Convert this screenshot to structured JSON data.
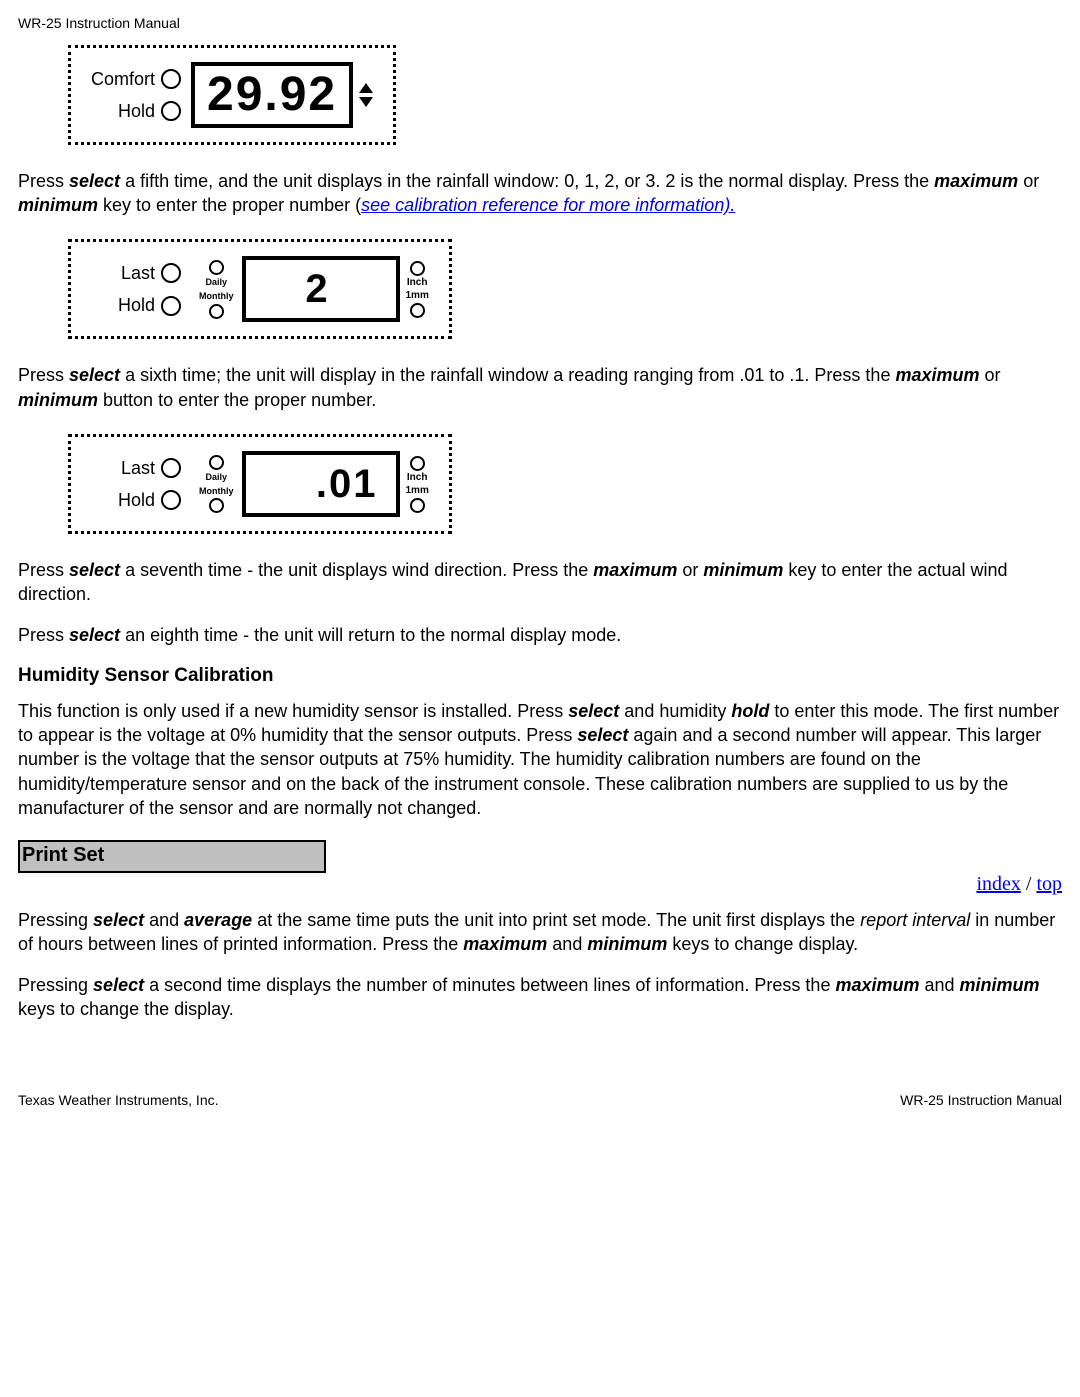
{
  "header": "WR-25 Instruction Manual",
  "panel1": {
    "label_top": "Comfort",
    "label_bottom": "Hold",
    "value": "29.92"
  },
  "para1": {
    "t1": "Press ",
    "k1": "select",
    "t2": " a fifth time, and the unit displays in the rainfall window: 0, 1, 2, or 3. 2 is the normal display. Press the ",
    "k2": "maximum",
    "t3": " or ",
    "k3": "minimum",
    "t4": " key to enter the proper number (",
    "link": "see calibration reference for more information).",
    "t5": ""
  },
  "panel2": {
    "label_top": "Last",
    "label_bottom": "Hold",
    "mid_top": "Daily",
    "mid_bot": "Monthly",
    "value": "2",
    "right_top": "Inch",
    "right_mid": "1mm"
  },
  "para2": {
    "t1": "Press ",
    "k1": "select",
    "t2": " a sixth time; the unit will display in the rainfall window a reading ranging from .01 to .1. Press the ",
    "k2": "maximum",
    "t3": " or ",
    "k3": "minimum",
    "t4": " button to enter the proper number."
  },
  "panel3": {
    "label_top": "Last",
    "label_bottom": "Hold",
    "mid_top": "Daily",
    "mid_bot": "Monthly",
    "value": ".01",
    "right_top": "Inch",
    "right_mid": "1mm"
  },
  "para3": {
    "t1": "Press ",
    "k1": "select",
    "t2": " a seventh time - the unit displays wind direction. Press the ",
    "k2": "maximum",
    "t3": " or ",
    "k3": "minimum",
    "t4": " key to enter the actual wind direction."
  },
  "para4": {
    "t1": "Press ",
    "k1": "select",
    "t2": " an eighth time - the unit will return to the normal display mode."
  },
  "h_humidity": "Humidity Sensor Calibration",
  "para5": {
    "t1": "This function is only used if a new humidity sensor is installed. Press ",
    "k1": "select",
    "t2": " and humidity ",
    "k2": "hold",
    "t3": " to enter this mode. The first number to appear is the voltage at 0% humidity that the sensor outputs. Press ",
    "k3": "select",
    "t4": " again and a second number will appear. This larger number is the voltage that the sensor outputs at 75% humidity. The humidity calibration numbers are found on the humidity/temperature sensor and on the back of the instrument console. These calibration numbers are supplied to us by the manufacturer of the sensor and are normally not changed."
  },
  "section_bar": "Print Set",
  "nav": {
    "index": "index",
    "sep": " / ",
    "top": "top"
  },
  "para6": {
    "t1": "Pressing ",
    "k1": "select",
    "t2": " and ",
    "k2": "average",
    "t3": " at the same time puts the unit into print set mode. The unit first displays the ",
    "em": "report interval",
    "t4": " in number of hours between lines of printed information. Press the ",
    "k3": "maximum",
    "t5": " and ",
    "k4": "minimum",
    "t6": " keys to change display."
  },
  "para7": {
    "t1": "Pressing ",
    "k1": "select",
    "t2": " a second time displays the number of minutes between lines of information. Press the ",
    "k2": "maximum",
    "t3": " and ",
    "k3": "minimum",
    "t4": " keys to change the display."
  },
  "footer_left": "Texas Weather Instruments, Inc.",
  "footer_right": "WR-25 Instruction Manual"
}
